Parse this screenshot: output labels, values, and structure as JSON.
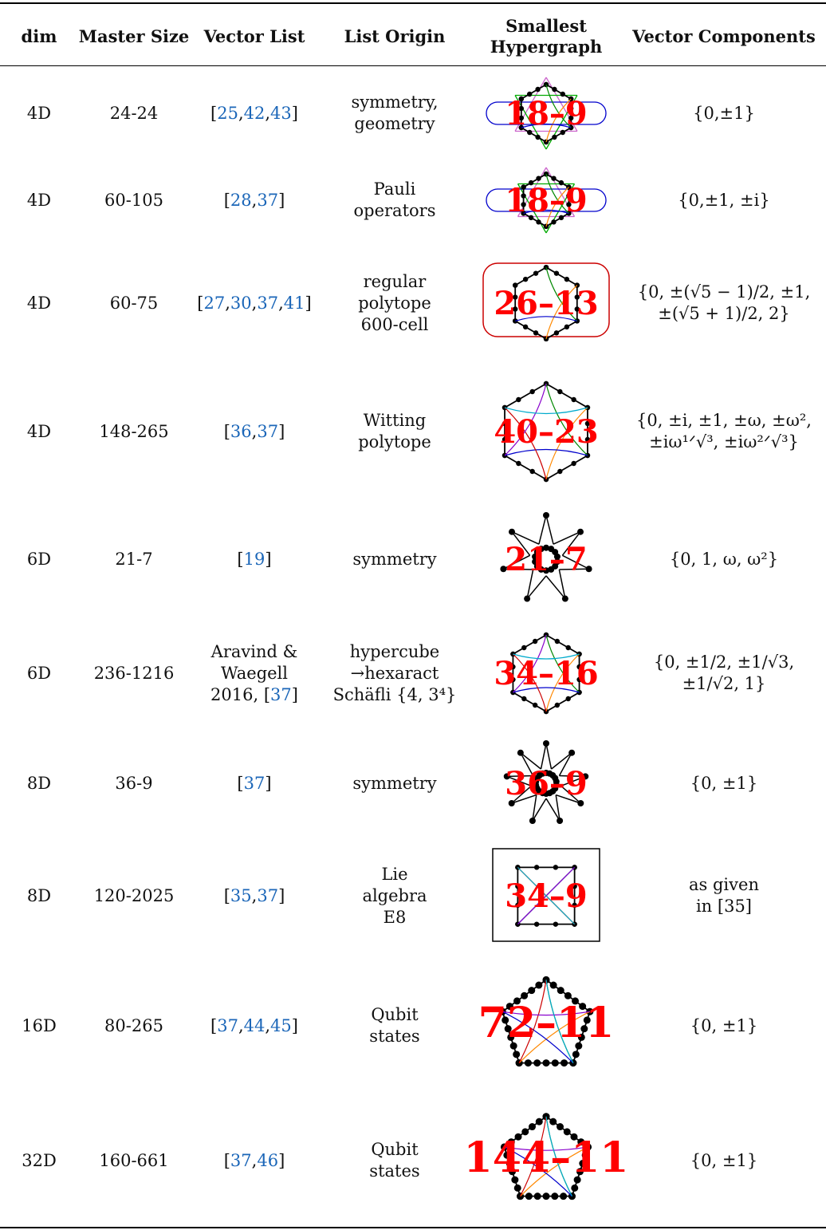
{
  "headers": {
    "dim": "dim",
    "master_size": "Master Size",
    "vector_list": "Vector List",
    "list_origin": "List Origin",
    "hypergraph": [
      "Smallest",
      "Hypergraph"
    ],
    "vector_components": "Vector Components"
  },
  "rows": [
    {
      "dim": "4D",
      "master_size": "24-24",
      "vector_list": {
        "pre": "[",
        "cites": [
          "25",
          "42",
          "43"
        ],
        "post": "]"
      },
      "origin": [
        "symmetry,",
        "geometry"
      ],
      "hypergraph": "18–9",
      "components": [
        "{0,±1}"
      ]
    },
    {
      "dim": "4D",
      "master_size": "60-105",
      "vector_list": {
        "pre": "[",
        "cites": [
          "28",
          "37"
        ],
        "post": "]"
      },
      "origin": [
        "Pauli",
        "operators"
      ],
      "hypergraph": "18–9",
      "components": [
        "{0,±1, ±i}"
      ]
    },
    {
      "dim": "4D",
      "master_size": "60-75",
      "vector_list": {
        "pre": "[",
        "cites": [
          "27",
          "30",
          "37",
          "41"
        ],
        "post": "]"
      },
      "origin": [
        "regular",
        "polytope",
        "600-cell"
      ],
      "hypergraph": "26–13",
      "components": [
        "{0, ±(√5 − 1)/2, ±1,",
        "±(√5 + 1)/2, 2}"
      ]
    },
    {
      "dim": "4D",
      "master_size": "148-265",
      "vector_list": {
        "pre": "[",
        "cites": [
          "36",
          "37"
        ],
        "post": "]"
      },
      "origin": [
        "Witting",
        "polytope"
      ],
      "hypergraph": "40–23",
      "components": [
        "{0, ±i, ±1, ±ω, ±ω², ",
        "±iω¹ᐟ√³, ±iω²ᐟ√³}"
      ]
    },
    {
      "dim": "6D",
      "master_size": "21-7",
      "vector_list": {
        "pre": "[",
        "cites": [
          "19"
        ],
        "post": "]"
      },
      "origin": [
        "symmetry"
      ],
      "hypergraph": "21–7",
      "components": [
        "{0, 1, ω, ω²}"
      ]
    },
    {
      "dim": "6D",
      "master_size": "236-1216",
      "vector_list": {
        "lines": [
          "Aravind &",
          "Waegell"
        ],
        "pre": "2016,  [",
        "cites": [
          "37"
        ],
        "post": "]"
      },
      "origin": [
        "hypercube",
        "→hexaract",
        "Schäfli {4, 3⁴}"
      ],
      "hypergraph": "34–16",
      "components": [
        "{0, ±1/2, ±1/√3,",
        "±1/√2, 1}"
      ]
    },
    {
      "dim": "8D",
      "master_size": "36-9",
      "vector_list": {
        "pre": "[",
        "cites": [
          "37"
        ],
        "post": "]"
      },
      "origin": [
        "symmetry"
      ],
      "hypergraph": "36–9",
      "components": [
        "{0, ±1}"
      ]
    },
    {
      "dim": "8D",
      "master_size": "120-2025",
      "vector_list": {
        "pre": "[",
        "cites": [
          "35",
          "37"
        ],
        "post": "]"
      },
      "origin": [
        "Lie",
        "algebra",
        "E8"
      ],
      "hypergraph": "34–9",
      "components": [
        "as given",
        "in [35]"
      ]
    },
    {
      "dim": "16D",
      "master_size": "80-265",
      "vector_list": {
        "pre": "[",
        "cites": [
          "37",
          "44",
          "45"
        ],
        "post": "]"
      },
      "origin": [
        "Qubit",
        "states"
      ],
      "hypergraph": "72–11",
      "components": [
        "{0, ±1}"
      ]
    },
    {
      "dim": "32D",
      "master_size": "160-661",
      "vector_list": {
        "pre": "[",
        "cites": [
          "37",
          "46"
        ],
        "post": "]"
      },
      "origin": [
        "Qubit",
        "states"
      ],
      "hypergraph": "144–11",
      "components": [
        "{0, ±1}"
      ]
    }
  ],
  "colors": {
    "cite": "#1b66b8",
    "hypergraph_label": "#ff0000"
  }
}
